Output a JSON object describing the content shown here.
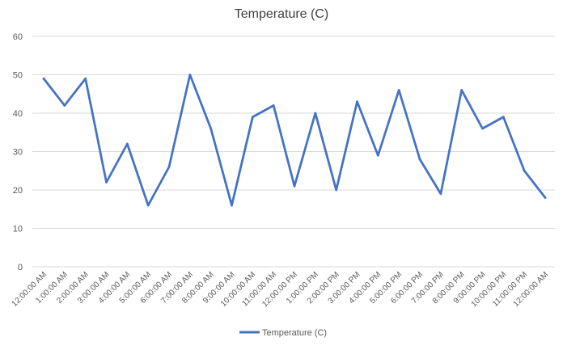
{
  "chart_data": {
    "type": "line",
    "title": "Temperature (C)",
    "xlabel": "",
    "ylabel": "",
    "ylim": [
      0,
      60
    ],
    "yticks": [
      0,
      10,
      20,
      30,
      40,
      50,
      60
    ],
    "grid": true,
    "legend_position": "bottom",
    "categories": [
      "12:00:00 AM",
      "1:00:00 AM",
      "2:00:00 AM",
      "3:00:00 AM",
      "4:00:00 AM",
      "5:00:00 AM",
      "6:00:00 AM",
      "7:00:00 AM",
      "8:00:00 AM",
      "9:00:00 AM",
      "10:00:00 AM",
      "11:00:00 AM",
      "12:00:00 PM",
      "1:00:00 PM",
      "2:00:00 PM",
      "3:00:00 PM",
      "4:00:00 PM",
      "5:00:00 PM",
      "6:00:00 PM",
      "7:00:00 PM",
      "8:00:00 PM",
      "9:00:00 PM",
      "10:00:00 PM",
      "11:00:00 PM",
      "12:00:00 AM"
    ],
    "series": [
      {
        "name": "Temperature (C)",
        "color": "#4472c4",
        "values": [
          49,
          42,
          49,
          22,
          32,
          16,
          26,
          50,
          36,
          16,
          39,
          42,
          21,
          40,
          20,
          43,
          29,
          46,
          28,
          19,
          46,
          36,
          39,
          25,
          18
        ]
      }
    ]
  },
  "colors": {
    "grid": "#d9d9d9",
    "axis_text": "#595959",
    "title_text": "#404040"
  }
}
